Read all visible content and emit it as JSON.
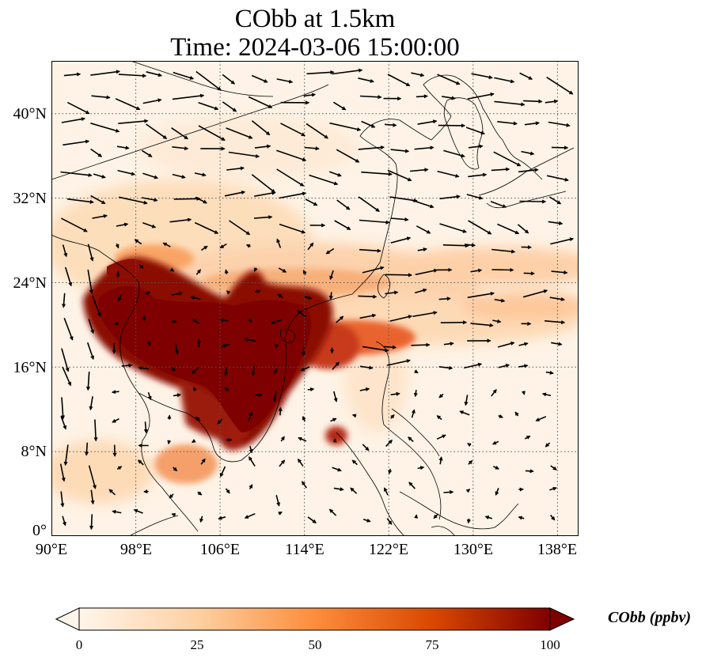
{
  "title": {
    "line1": "CObb at 1.5km",
    "line2": "Time: 2024-03-06 15:00:00"
  },
  "map": {
    "lon_range": [
      90,
      140
    ],
    "lat_range": [
      0,
      45
    ],
    "lat_ticks": [
      {
        "value": 0,
        "label": "0°"
      },
      {
        "value": 8,
        "label": "8°N"
      },
      {
        "value": 16,
        "label": "16°N"
      },
      {
        "value": 24,
        "label": "24°N"
      },
      {
        "value": 32,
        "label": "32°N"
      },
      {
        "value": 40,
        "label": "40°N"
      }
    ],
    "lon_ticks": [
      {
        "value": 90,
        "label": "90°E"
      },
      {
        "value": 98,
        "label": "98°E"
      },
      {
        "value": 106,
        "label": "106°E"
      },
      {
        "value": 114,
        "label": "114°E"
      },
      {
        "value": 122,
        "label": "122°E"
      },
      {
        "value": 130,
        "label": "130°E"
      },
      {
        "value": 138,
        "label": "138°E"
      }
    ],
    "gridlines": "dotted"
  },
  "colorbar": {
    "label": "CObb (ppbv)",
    "min": 0,
    "max": 100,
    "ticks": [
      "0",
      "25",
      "50",
      "75",
      "100"
    ],
    "extend": "both",
    "colormap": [
      "#fff5eb",
      "#fdd0a2",
      "#fd8d3c",
      "#d94801",
      "#7f0000"
    ]
  }
}
